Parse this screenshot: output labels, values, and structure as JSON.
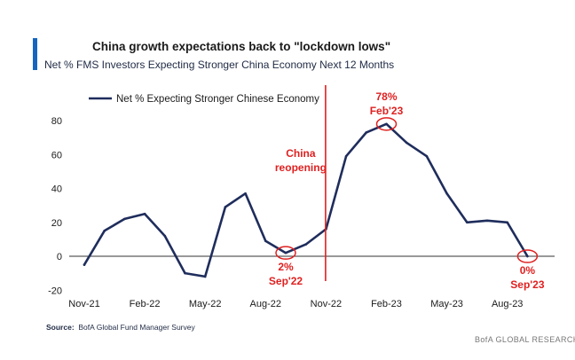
{
  "header": {
    "title": "China growth expectations back to \"lockdown lows\"",
    "subtitle": "Net % FMS Investors Expecting Stronger China Economy Next 12 Months"
  },
  "footer": {
    "source_label": "Source:",
    "source_text": "BofA Global Fund Manager Survey",
    "brand": "BofA GLOBAL RESEARCH"
  },
  "colors": {
    "accent": "#1565c0",
    "series": "#1f2d5c",
    "annotation": "#e02020",
    "axis": "#333333"
  },
  "chart_data": {
    "type": "line",
    "title": "China growth expectations back to \"lockdown lows\"",
    "subtitle": "Net % FMS Investors Expecting Stronger China Economy Next 12 Months",
    "xlabel": "",
    "ylabel": "",
    "ylim": [
      -20,
      90
    ],
    "yticks": [
      -20,
      0,
      20,
      40,
      60,
      80
    ],
    "ytick_labels": [
      "-20",
      "0",
      "20",
      "40",
      "60",
      "80"
    ],
    "xticks": [
      {
        "index": 0,
        "label": "Nov-21"
      },
      {
        "index": 3,
        "label": "Feb-22"
      },
      {
        "index": 6,
        "label": "May-22"
      },
      {
        "index": 9,
        "label": "Aug-22"
      },
      {
        "index": 12,
        "label": "Nov-22"
      },
      {
        "index": 15,
        "label": "Feb-23"
      },
      {
        "index": 18,
        "label": "May-23"
      },
      {
        "index": 21,
        "label": "Aug-23"
      }
    ],
    "legend": "top-left",
    "series": [
      {
        "name": "Net % Expecting Stronger Chinese Economy",
        "x": [
          "Nov-21",
          "Dec-21",
          "Jan-22",
          "Feb-22",
          "Mar-22",
          "Apr-22",
          "May-22",
          "Jun-22",
          "Jul-22",
          "Aug-22",
          "Sep-22",
          "Oct-22",
          "Nov-22",
          "Dec-22",
          "Jan-23",
          "Feb-23",
          "Mar-23",
          "Apr-23",
          "May-23",
          "Jun-23",
          "Jul-23",
          "Aug-23",
          "Sep-23"
        ],
        "values": [
          -5,
          15,
          22,
          25,
          12,
          -10,
          -12,
          29,
          37,
          9,
          2,
          7,
          16,
          59,
          73,
          78,
          67,
          59,
          37,
          20,
          21,
          20,
          0
        ]
      }
    ],
    "annotations": {
      "reopening": {
        "index": 12,
        "line1": "China",
        "line2": "reopening"
      },
      "points": [
        {
          "index": 10,
          "value_label": "2%",
          "date_label": "Sep'22",
          "position": "below"
        },
        {
          "index": 15,
          "value_label": "78%",
          "date_label": "Feb'23",
          "position": "above"
        },
        {
          "index": 22,
          "value_label": "0%",
          "date_label": "Sep'23",
          "position": "below"
        }
      ]
    }
  }
}
